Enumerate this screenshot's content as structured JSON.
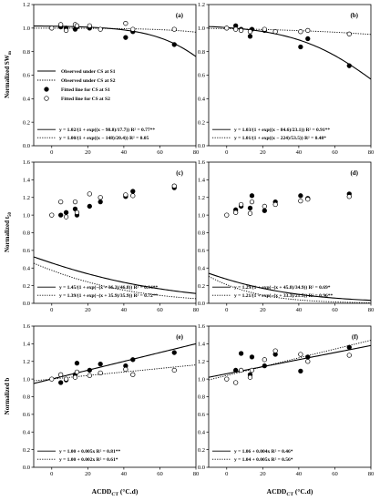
{
  "figure": {
    "x_axis_label": "ACDD",
    "x_axis_label_sub": "CT",
    "x_axis_unit": " (°C.d)",
    "rows_y_labels": [
      {
        "main": "Normalized SW",
        "sub": "m"
      },
      {
        "main": "Normalized t",
        "sub": "50"
      },
      {
        "main": "Normalized b",
        "sub": ""
      }
    ],
    "legend": [
      {
        "label": "Observed under CS at S1",
        "style": "solid"
      },
      {
        "label": "Observed under CS at S2",
        "style": "dotted"
      },
      {
        "label": "Fitted line for CS at S1",
        "marker": "filled"
      },
      {
        "label": "Fitted line for CS at S2",
        "marker": "open"
      }
    ],
    "colors": {
      "axis": "#000000",
      "line": "#000000",
      "fill_s1": "#000000",
      "fill_s2": "#ffffff"
    }
  },
  "chart_data": [
    {
      "type": "scatter",
      "panel": "(a)",
      "xlim": [
        -10,
        80
      ],
      "ylim": [
        0,
        1.2
      ],
      "xticks": [
        0,
        20,
        40,
        60,
        80
      ],
      "yticks": [
        0,
        0.2,
        0.4,
        0.6,
        0.8,
        1.0,
        1.2
      ],
      "series": [
        {
          "name": "Observed under CS at S1",
          "marker": "filled",
          "x": [
            5,
            8,
            13,
            14,
            21,
            41,
            45,
            68
          ],
          "y": [
            1.01,
            1.0,
            0.99,
            1.01,
            1.0,
            0.92,
            0.97,
            0.86
          ]
        },
        {
          "name": "Observed under CS at S2",
          "marker": "open",
          "x": [
            0,
            5,
            8,
            13,
            14,
            21,
            27,
            41,
            45,
            68
          ],
          "y": [
            1.0,
            1.03,
            0.98,
            1.03,
            1.02,
            1.02,
            0.99,
            1.04,
            0.99,
            0.99
          ]
        }
      ],
      "fits": [
        {
          "style": "solid",
          "a": 1.02,
          "c": 98.8,
          "s": 17.7,
          "equation": "y = 1.02/(1 + exp((x − 98.8)/17.7)) R² = 0.77**"
        },
        {
          "style": "dotted",
          "a": 1.0,
          "c": 148,
          "s": 20.4,
          "equation": "y = 1.00/(1 + exp((x − 148)/20.4)) R² = 0.05"
        }
      ],
      "show_legend": true
    },
    {
      "type": "scatter",
      "panel": "(b)",
      "xlim": [
        -10,
        80
      ],
      "ylim": [
        0,
        1.2
      ],
      "xticks": [
        0,
        20,
        40,
        60,
        80
      ],
      "yticks": [
        0,
        0.2,
        0.4,
        0.6,
        0.8,
        1.0,
        1.2
      ],
      "series": [
        {
          "name": "Observed under CS at S1",
          "marker": "filled",
          "x": [
            5,
            8,
            13,
            14,
            21,
            41,
            45,
            68
          ],
          "y": [
            1.02,
            0.99,
            0.93,
            0.99,
            0.98,
            0.84,
            0.91,
            0.68
          ]
        },
        {
          "name": "Observed under CS at S2",
          "marker": "open",
          "x": [
            0,
            5,
            8,
            13,
            21,
            27,
            41,
            45,
            68
          ],
          "y": [
            1.0,
            0.99,
            0.98,
            0.97,
            0.99,
            0.97,
            0.97,
            0.98,
            0.95
          ]
        }
      ],
      "fits": [
        {
          "style": "solid",
          "a": 1.03,
          "c": 84.6,
          "s": 23.1,
          "equation": "y = 1.03/(1 + exp((x − 84.6)/23.1)) R² = 0.91**"
        },
        {
          "style": "dotted",
          "a": 1.01,
          "c": 224,
          "s": 53.5,
          "equation": "y = 1.01/(1 + exp((x − 224)/53.5)) R² = 0.48*"
        }
      ],
      "show_legend": false
    },
    {
      "type": "scatter",
      "panel": "(c)",
      "xlim": [
        -10,
        80
      ],
      "ylim": [
        0,
        1.6
      ],
      "xticks": [
        0,
        20,
        40,
        60,
        80
      ],
      "yticks": [
        0,
        0.2,
        0.4,
        0.6,
        0.8,
        1.0,
        1.2,
        1.4,
        1.6
      ],
      "series": [
        {
          "name": "Observed under CS at S1",
          "marker": "filled",
          "x": [
            5,
            8,
            13,
            14,
            21,
            27,
            41,
            45,
            68
          ],
          "y": [
            1.0,
            1.03,
            1.07,
            1.0,
            1.1,
            1.15,
            1.21,
            1.27,
            1.31
          ]
        },
        {
          "name": "Observed under CS at S2",
          "marker": "open",
          "x": [
            0,
            5,
            8,
            13,
            14,
            21,
            27,
            41,
            45,
            68
          ],
          "y": [
            1.0,
            1.15,
            0.98,
            1.15,
            1.03,
            1.24,
            1.2,
            1.23,
            1.22,
            1.33
          ]
        }
      ],
      "fits": [
        {
          "style": "solid",
          "a": 1.45,
          "c": -36.3,
          "s": 46.8,
          "equation": "y = 1.45/(1 + exp(−(x + 36.3)/46.8)) R² = 0.94**"
        },
        {
          "style": "dotted",
          "a": 1.39,
          "c": -35.9,
          "s": 35.9,
          "equation": "y = 1.39/(1 + exp(−(x + 35.9)/35.9)) R² = 0.72**"
        }
      ],
      "show_legend": false
    },
    {
      "type": "scatter",
      "panel": "(d)",
      "xlim": [
        -10,
        80
      ],
      "ylim": [
        0,
        1.6
      ],
      "xticks": [
        0,
        20,
        40,
        60,
        80
      ],
      "yticks": [
        0,
        0.2,
        0.4,
        0.6,
        0.8,
        1.0,
        1.2,
        1.4,
        1.6
      ],
      "series": [
        {
          "name": "Observed under CS at S1",
          "marker": "filled",
          "x": [
            5,
            8,
            13,
            14,
            21,
            27,
            41,
            45,
            68
          ],
          "y": [
            1.06,
            1.1,
            1.08,
            1.22,
            1.05,
            1.15,
            1.22,
            1.19,
            1.24
          ]
        },
        {
          "name": "Observed under CS at S2",
          "marker": "open",
          "x": [
            0,
            5,
            8,
            13,
            14,
            21,
            27,
            41,
            45,
            68
          ],
          "y": [
            1.0,
            1.03,
            1.12,
            1.02,
            1.15,
            1.1,
            1.12,
            1.16,
            1.18,
            1.21
          ]
        }
      ],
      "fits": [
        {
          "style": "solid",
          "a": 1.29,
          "c": -45.8,
          "s": 34.9,
          "equation": "y = 1.29/(1 + exp(−(x + 45.8)/34.9)) R² = 0.69*"
        },
        {
          "style": "dotted",
          "a": 1.21,
          "c": -33.3,
          "s": 21.5,
          "equation": "y = 1.21/(1 + exp(−(x + 33.3)/21.5)) R² = 0.96**"
        }
      ],
      "show_legend": false
    },
    {
      "type": "scatter",
      "panel": "(e)",
      "xlim": [
        -10,
        80
      ],
      "ylim": [
        0,
        1.6
      ],
      "xticks": [
        0,
        20,
        40,
        60,
        80
      ],
      "yticks": [
        0,
        0.2,
        0.4,
        0.6,
        0.8,
        1.0,
        1.2,
        1.4,
        1.6
      ],
      "series": [
        {
          "name": "Observed under CS at S1",
          "marker": "filled",
          "x": [
            5,
            8,
            13,
            14,
            21,
            27,
            41,
            45,
            68
          ],
          "y": [
            0.96,
            0.99,
            1.05,
            1.18,
            1.1,
            1.17,
            1.15,
            1.22,
            1.3
          ]
        },
        {
          "name": "Observed under CS at S2",
          "marker": "open",
          "x": [
            0,
            5,
            8,
            13,
            14,
            21,
            27,
            41,
            45,
            68
          ],
          "y": [
            1.0,
            1.05,
            1.0,
            1.02,
            1.08,
            1.04,
            1.07,
            1.11,
            1.05,
            1.1
          ]
        }
      ],
      "fits": [
        {
          "style": "solid",
          "kind": "linear",
          "a": 1.0,
          "b": 0.005,
          "equation": "y = 1.00 + 0.005x  R² = 0.81**"
        },
        {
          "style": "dotted",
          "kind": "linear",
          "a": 1.0,
          "b": 0.002,
          "equation": "y = 1.00 + 0.002x  R² = 0.61*"
        }
      ],
      "show_legend": false
    },
    {
      "type": "scatter",
      "panel": "(f)",
      "xlim": [
        -10,
        80
      ],
      "ylim": [
        0,
        1.6
      ],
      "xticks": [
        0,
        20,
        40,
        60,
        80
      ],
      "yticks": [
        0,
        0.2,
        0.4,
        0.6,
        0.8,
        1.0,
        1.2,
        1.4,
        1.6
      ],
      "series": [
        {
          "name": "Observed under CS at S1",
          "marker": "filled",
          "x": [
            5,
            8,
            13,
            14,
            21,
            27,
            41,
            45,
            68
          ],
          "y": [
            1.1,
            1.29,
            1.05,
            1.25,
            1.15,
            1.28,
            1.09,
            1.25,
            1.36
          ]
        },
        {
          "name": "Observed under CS at S2",
          "marker": "open",
          "x": [
            0,
            5,
            8,
            13,
            14,
            21,
            27,
            41,
            45,
            68
          ],
          "y": [
            1.0,
            0.96,
            1.1,
            1.02,
            1.1,
            1.22,
            1.32,
            1.28,
            1.2,
            1.27
          ]
        }
      ],
      "fits": [
        {
          "style": "solid",
          "kind": "linear",
          "a": 1.06,
          "b": 0.004,
          "equation": "y = 1.06 + 0.004x  R² = 0.46*"
        },
        {
          "style": "dotted",
          "kind": "linear",
          "a": 1.04,
          "b": 0.005,
          "equation": "y = 1.04 + 0.005x  R² = 0.56*"
        }
      ],
      "show_legend": false
    }
  ]
}
